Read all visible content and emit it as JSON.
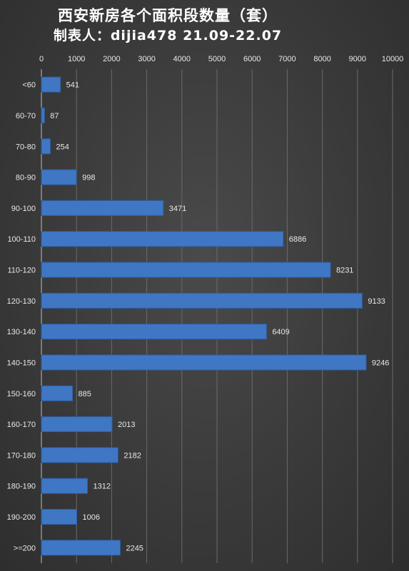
{
  "title": {
    "line1": "西安新房各个面积段数量（套）",
    "line2": "制表人：dijia478 21.09-22.07"
  },
  "colors": {
    "bar": "#3f77c4",
    "bar_edge": "#2d5fa6",
    "text": "#e8e8e8",
    "grid": "#6a6a6a",
    "axis": "#bdbdbd"
  },
  "chart_data": {
    "type": "bar",
    "orientation": "horizontal",
    "title": "西安新房各个面积段数量（套）",
    "subtitle": "制表人：dijia478 21.09-22.07",
    "xlabel": "",
    "ylabel": "",
    "xlim": [
      0,
      10000
    ],
    "x_ticks": [
      0,
      1000,
      2000,
      3000,
      4000,
      5000,
      6000,
      7000,
      8000,
      9000,
      10000
    ],
    "x_axis_position": "top",
    "grid": true,
    "legend": "none",
    "categories": [
      "<60",
      "60-70",
      "70-80",
      "80-90",
      "90-100",
      "100-110",
      "110-120",
      "120-130",
      "130-140",
      "140-150",
      "150-160",
      "160-170",
      "170-180",
      "180-190",
      "190-200",
      ">=200"
    ],
    "values": [
      541,
      87,
      254,
      998,
      3471,
      6886,
      8231,
      9133,
      6409,
      9246,
      885,
      2013,
      2182,
      1312,
      1006,
      2245
    ]
  }
}
